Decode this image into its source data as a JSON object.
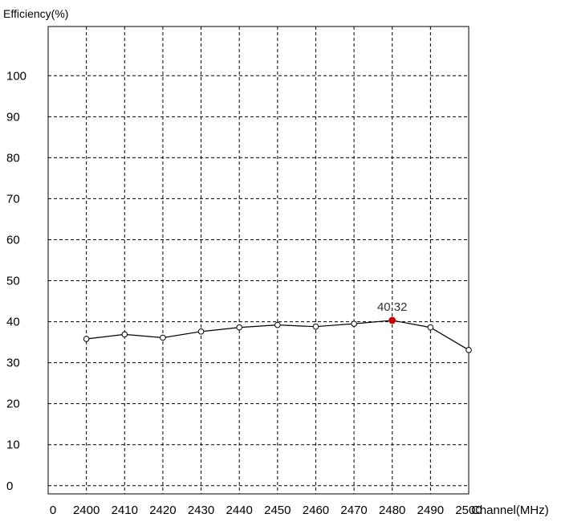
{
  "chart_data": {
    "type": "line",
    "ylabel": "Efficiency(%)",
    "xlabel": "Channel(MHz)",
    "x_ticks": [
      "0",
      "2400",
      "2410",
      "2420",
      "2430",
      "2440",
      "2450",
      "2460",
      "2470",
      "2480",
      "2490",
      "2500"
    ],
    "y_ticks": [
      "0",
      "10",
      "20",
      "30",
      "40",
      "50",
      "60",
      "70",
      "80",
      "90",
      "100"
    ],
    "xlim": [
      2390,
      2500
    ],
    "ylim": [
      -2,
      112
    ],
    "grid": true,
    "series": [
      {
        "x": [
          2400,
          2410,
          2420,
          2430,
          2440,
          2450,
          2460,
          2470,
          2480,
          2490,
          2500
        ],
        "values": [
          35.8,
          36.9,
          36.1,
          37.6,
          38.6,
          39.2,
          38.8,
          39.5,
          40.32,
          38.6,
          33.1
        ]
      }
    ],
    "highlight": {
      "x": 2480,
      "y": 40.32,
      "label": "40.32",
      "color": "#cc0000"
    },
    "line_color": "#000000",
    "grid_color": "#000000"
  }
}
